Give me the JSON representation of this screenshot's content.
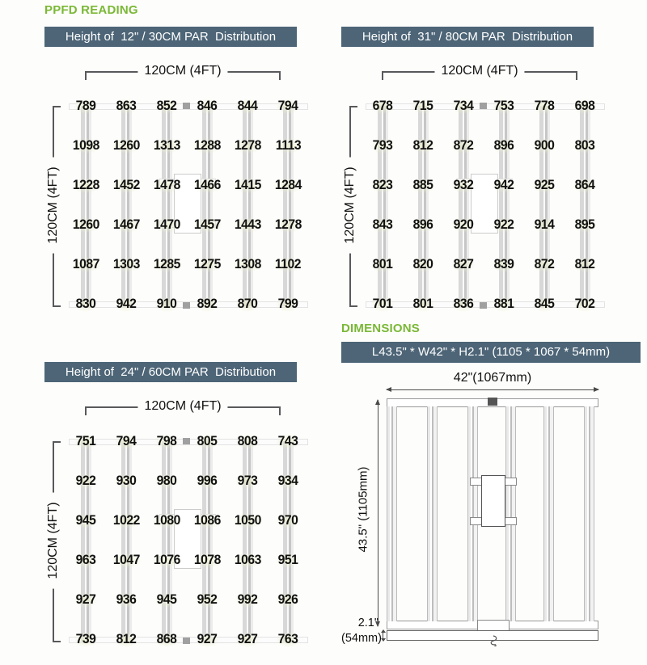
{
  "page": {
    "title": "PPFD READING",
    "accent_green": "#7ab836",
    "header_bar_color": "#4d6577"
  },
  "panels": [
    {
      "header": "Height of  12\" / 30CM PAR  Distribution",
      "width_label": "120CM (4FT)",
      "height_label": "120CM (4FT)"
    },
    {
      "header": "Height of  31\" / 80CM PAR  Distribution",
      "width_label": "120CM (4FT)",
      "height_label": "120CM (4FT)"
    },
    {
      "header": "Height of  24\" / 60CM PAR  Distribution",
      "width_label": "120CM (4FT)",
      "height_label": "120CM (4FT)"
    }
  ],
  "chart_data": [
    {
      "type": "heatmap",
      "title": "Height of 12\" / 30CM PAR Distribution",
      "xlabel": "120CM (4FT)",
      "ylabel": "120CM (4FT)",
      "values": [
        [
          789,
          863,
          852,
          846,
          844,
          794
        ],
        [
          1098,
          1260,
          1313,
          1288,
          1278,
          1113
        ],
        [
          1228,
          1452,
          1478,
          1466,
          1415,
          1284
        ],
        [
          1260,
          1467,
          1470,
          1457,
          1443,
          1278
        ],
        [
          1087,
          1303,
          1285,
          1275,
          1308,
          1102
        ],
        [
          830,
          942,
          910,
          892,
          870,
          799
        ]
      ]
    },
    {
      "type": "heatmap",
      "title": "Height of 31\" / 80CM PAR Distribution",
      "xlabel": "120CM (4FT)",
      "ylabel": "120CM (4FT)",
      "values": [
        [
          678,
          715,
          734,
          753,
          778,
          698
        ],
        [
          793,
          812,
          872,
          896,
          900,
          803
        ],
        [
          823,
          885,
          932,
          942,
          925,
          864
        ],
        [
          843,
          896,
          920,
          922,
          914,
          895
        ],
        [
          801,
          820,
          827,
          839,
          872,
          812
        ],
        [
          701,
          801,
          836,
          881,
          845,
          702
        ]
      ]
    },
    {
      "type": "heatmap",
      "title": "Height of 24\" / 60CM PAR Distribution",
      "xlabel": "120CM (4FT)",
      "ylabel": "120CM (4FT)",
      "values": [
        [
          751,
          794,
          798,
          805,
          808,
          743
        ],
        [
          922,
          930,
          980,
          996,
          973,
          934
        ],
        [
          945,
          1022,
          1080,
          1086,
          1050,
          970
        ],
        [
          963,
          1047,
          1076,
          1078,
          1063,
          951
        ],
        [
          927,
          936,
          945,
          952,
          992,
          926
        ],
        [
          739,
          812,
          868,
          927,
          927,
          763
        ]
      ]
    }
  ],
  "dimensions": {
    "title": "DIMENSIONS",
    "spec": "L43.5\" * W42\" * H2.1\" (1105 * 1067 * 54mm)",
    "width_dim": "42\"(1067mm)",
    "length_dim": "43.5\" (1105mm)",
    "height_dim_line1": "2.1\"",
    "height_dim_line2": "(54mm)"
  }
}
